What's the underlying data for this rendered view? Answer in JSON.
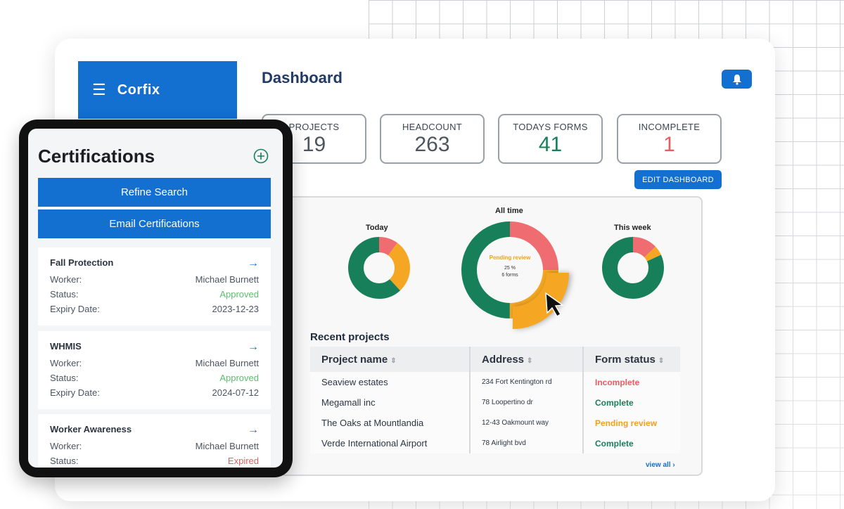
{
  "brand": {
    "name": "Corfix",
    "menu_icon": "hamburger-icon"
  },
  "header": {
    "title": "Dashboard",
    "bell_icon": "bell-icon"
  },
  "stats": [
    {
      "label": "PROJECTS",
      "value": "19"
    },
    {
      "label": "HEADCOUNT",
      "value": "263"
    },
    {
      "label": "TODAYS FORMS",
      "value": "41"
    },
    {
      "label": "INCOMPLETE",
      "value": "1"
    }
  ],
  "edit_dashboard_label": "EDIT DASHBOARD",
  "charts": {
    "today": {
      "label": "Today",
      "segments": [
        {
          "status": "Complete",
          "fraction": 0.62,
          "color": "#17805b"
        },
        {
          "status": "Incomplete",
          "fraction": 0.1,
          "color": "#ef6d70"
        },
        {
          "status": "Pending review",
          "fraction": 0.28,
          "color": "#f5a623"
        }
      ]
    },
    "all_time": {
      "label": "All time",
      "tooltip_title": "Pending review",
      "tooltip_percent": "25 %",
      "tooltip_count": "6 forms",
      "segments": [
        {
          "status": "Complete",
          "fraction": 0.5,
          "color": "#17805b"
        },
        {
          "status": "Incomplete",
          "fraction": 0.25,
          "color": "#ef6d70"
        },
        {
          "status": "Pending review",
          "fraction": 0.25,
          "color": "#f5a623"
        }
      ]
    },
    "this_week": {
      "label": "This week",
      "segments": [
        {
          "status": "Complete",
          "fraction": 0.82,
          "color": "#17805b"
        },
        {
          "status": "Incomplete",
          "fraction": 0.13,
          "color": "#ef6d70"
        },
        {
          "status": "Pending review",
          "fraction": 0.05,
          "color": "#f5a623"
        }
      ]
    }
  },
  "recent": {
    "title": "Recent projects",
    "columns": [
      "Project name",
      "Address",
      "Form status"
    ],
    "rows": [
      {
        "name": "Seaview estates",
        "address": "234 Fort Kentington rd",
        "status": "Incomplete",
        "kind": "incomplete"
      },
      {
        "name": "Megamall inc",
        "address": "78 Loopertino dr",
        "status": "Complete",
        "kind": "complete"
      },
      {
        "name": "The Oaks at Mountlandia",
        "address": "12-43 Oakmount way",
        "status": "Pending review",
        "kind": "pending"
      },
      {
        "name": "Verde International Airport",
        "address": "78 Airlight bvd",
        "status": "Complete",
        "kind": "complete"
      }
    ],
    "view_all": "view all ›"
  },
  "certifications": {
    "title": "Certifications",
    "refine_label": "Refine Search",
    "email_label": "Email Certifications",
    "field_labels": {
      "worker": "Worker:",
      "status": "Status:",
      "expiry": "Expiry Date:"
    },
    "items": [
      {
        "name": "Fall Protection",
        "worker": "Michael Burnett",
        "status": "Approved",
        "expiry": "2023-12-23"
      },
      {
        "name": "WHMIS",
        "worker": "Michael Burnett",
        "status": "Approved",
        "expiry": "2024-07-12"
      },
      {
        "name": "Worker Awareness",
        "worker": "Michael Burnett",
        "status": "Expired",
        "expiry": ""
      }
    ]
  }
}
